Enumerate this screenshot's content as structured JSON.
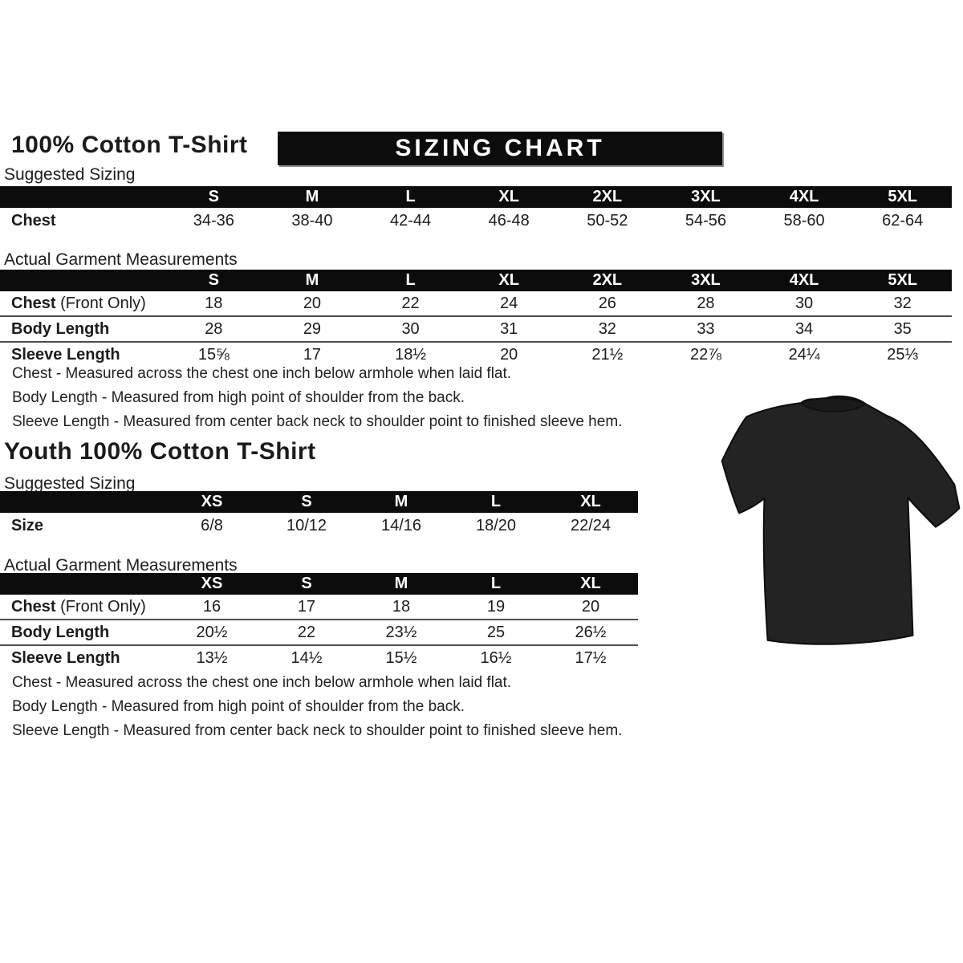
{
  "banner": "SIZING CHART",
  "adult": {
    "title": "100% Cotton T-Shirt",
    "suggested": {
      "label": "Suggested Sizing",
      "columns": [
        "S",
        "M",
        "L",
        "XL",
        "2XL",
        "3XL",
        "4XL",
        "5XL"
      ],
      "rows": [
        {
          "label": "Chest",
          "suffix": "",
          "values": [
            "34-36",
            "38-40",
            "42-44",
            "46-48",
            "50-52",
            "54-56",
            "58-60",
            "62-64"
          ]
        }
      ]
    },
    "actual": {
      "label": "Actual Garment Measurements",
      "columns": [
        "S",
        "M",
        "L",
        "XL",
        "2XL",
        "3XL",
        "4XL",
        "5XL"
      ],
      "rows": [
        {
          "label": "Chest",
          "suffix": " (Front Only)",
          "values": [
            "18",
            "20",
            "22",
            "24",
            "26",
            "28",
            "30",
            "32"
          ]
        },
        {
          "label": "Body Length",
          "suffix": "",
          "values": [
            "28",
            "29",
            "30",
            "31",
            "32",
            "33",
            "34",
            "35"
          ]
        },
        {
          "label": "Sleeve Length",
          "suffix": "",
          "values": [
            "15⅝",
            "17",
            "18½",
            "20",
            "21½",
            "22⅞",
            "24¼",
            "25⅓"
          ]
        }
      ]
    },
    "notes": [
      "Chest - Measured across the chest one inch below armhole when laid flat.",
      "Body Length - Measured from high point of shoulder from the back.",
      "Sleeve Length - Measured from center back neck to shoulder point to finished sleeve hem."
    ]
  },
  "youth": {
    "title": "Youth 100% Cotton T-Shirt",
    "suggested": {
      "label": "Suggested Sizing",
      "columns": [
        "XS",
        "S",
        "M",
        "L",
        "XL"
      ],
      "rows": [
        {
          "label": "Size",
          "suffix": "",
          "values": [
            "6/8",
            "10/12",
            "14/16",
            "18/20",
            "22/24"
          ]
        }
      ]
    },
    "actual": {
      "label": "Actual Garment Measurements",
      "columns": [
        "XS",
        "S",
        "M",
        "L",
        "XL"
      ],
      "rows": [
        {
          "label": "Chest",
          "suffix": " (Front Only)",
          "values": [
            "16",
            "17",
            "18",
            "19",
            "20"
          ]
        },
        {
          "label": "Body Length",
          "suffix": "",
          "values": [
            "20½",
            "22",
            "23½",
            "25",
            "26½"
          ]
        },
        {
          "label": "Sleeve Length",
          "suffix": "",
          "values": [
            "13½",
            "14½",
            "15½",
            "16½",
            "17½"
          ]
        }
      ]
    },
    "notes": [
      "Chest - Measured across the chest one inch below armhole when laid flat.",
      "Body Length - Measured from high point of shoulder from the back.",
      "Sleeve Length - Measured from center back neck to shoulder point to finished sleeve hem."
    ]
  },
  "tshirt": {
    "description": "black short-sleeve crew-neck t-shirt photo",
    "color": "#232323"
  },
  "colors": {
    "header_bar": "#0c0c0c",
    "text": "#1a1a1a",
    "row_separator": "#4d4d4d",
    "background": "#ffffff"
  }
}
